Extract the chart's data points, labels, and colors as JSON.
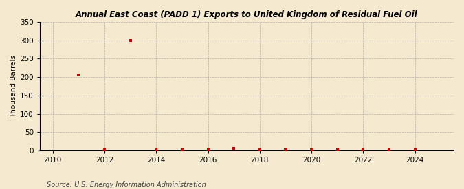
{
  "title": "Annual East Coast (PADD 1) Exports to United Kingdom of Residual Fuel Oil",
  "ylabel": "Thousand Barrels",
  "source": "Source: U.S. Energy Information Administration",
  "background_color": "#f5ead0",
  "plot_background_color": "#f5ead0",
  "marker_color": "#cc0000",
  "marker_size": 3,
  "xlim": [
    2009.5,
    2025.5
  ],
  "ylim": [
    0,
    350
  ],
  "yticks": [
    0,
    50,
    100,
    150,
    200,
    250,
    300,
    350
  ],
  "xticks": [
    2010,
    2012,
    2014,
    2016,
    2018,
    2020,
    2022,
    2024
  ],
  "data_years": [
    2011,
    2012,
    2013,
    2014,
    2015,
    2016,
    2017,
    2018,
    2019,
    2020,
    2021,
    2022,
    2023,
    2024
  ],
  "data_values": [
    205,
    1,
    300,
    1,
    1,
    2,
    5,
    1,
    1,
    1,
    1,
    2,
    2,
    1
  ]
}
